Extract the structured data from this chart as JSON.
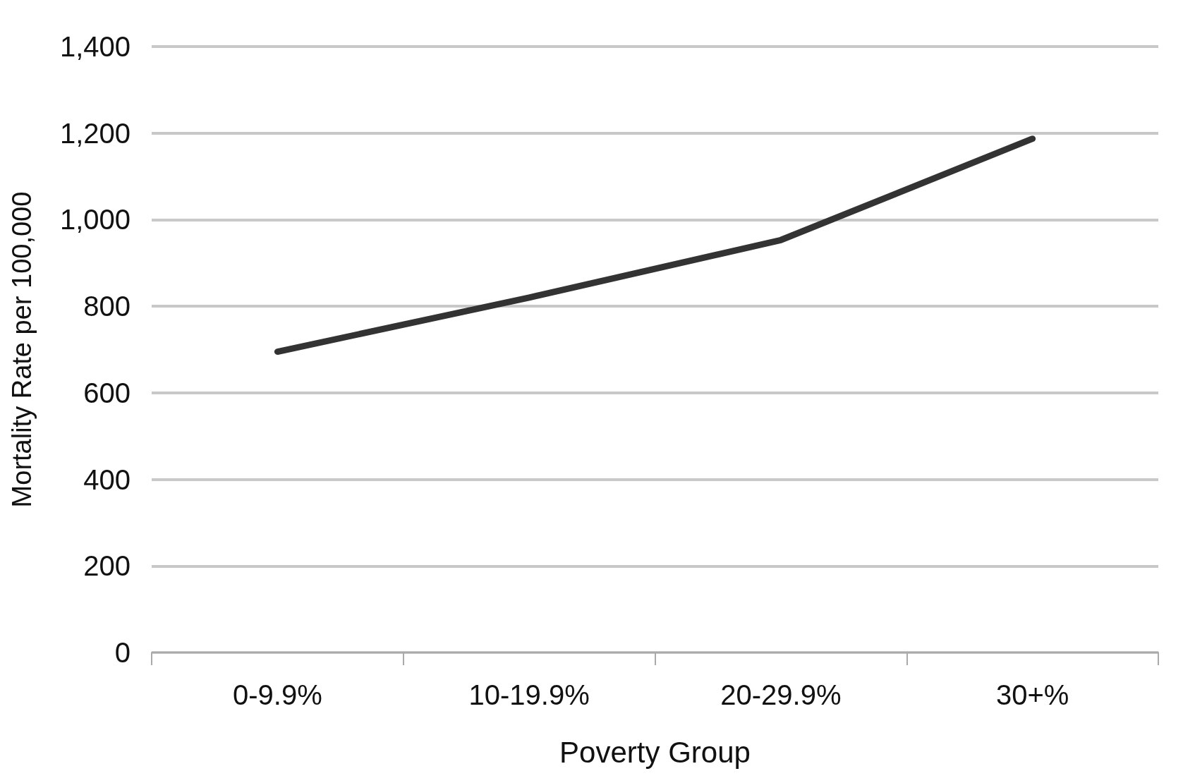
{
  "chart_data": {
    "type": "line",
    "xlabel": "Poverty Group",
    "ylabel": "Mortality Rate per 100,000",
    "categories": [
      "0-9.9%",
      "10-19.9%",
      "20-29.9%",
      "30+%"
    ],
    "series": [
      {
        "color": "#333333",
        "values": [
          695,
          820,
          953,
          1187
        ]
      }
    ],
    "ylim": [
      0,
      1400
    ],
    "yticks": [
      {
        "value": 0,
        "label": "0"
      },
      {
        "value": 200,
        "label": "200"
      },
      {
        "value": 400,
        "label": "400"
      },
      {
        "value": 600,
        "label": "600"
      },
      {
        "value": 800,
        "label": "800"
      },
      {
        "value": 1000,
        "label": "1,000"
      },
      {
        "value": 1200,
        "label": "1,200"
      },
      {
        "value": 1400,
        "label": "1,400"
      }
    ],
    "grid": "y",
    "marker": "none",
    "line_style": "solid"
  }
}
